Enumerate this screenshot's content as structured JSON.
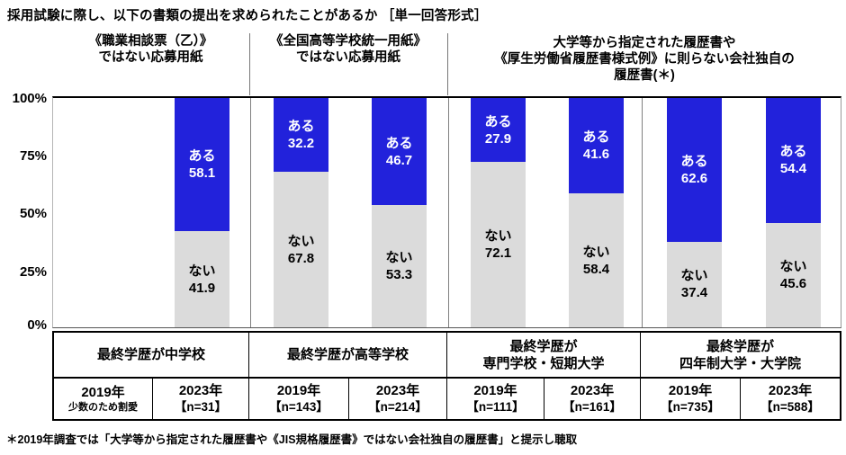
{
  "title": "採用試験に際し、以下の書類の提出を求められたことがあるか ［単一回答形式］",
  "footnote": "＊2019年調査では「大学等から指定された履歴書や《JIS規格履歴書》ではない会社独自の履歴書」と提示し聴取",
  "columns": [
    {
      "lines": [
        "《職業相談票（乙）》",
        "ではない応募用紙"
      ]
    },
    {
      "lines": [
        "《全国高等学校統一用紙》",
        "ではない応募用紙"
      ]
    },
    {
      "lines": [
        "大学等から指定された履歴書や",
        "《厚生労働省履歴書様式例》に則らない会社独自の",
        "履歴書(＊)"
      ]
    }
  ],
  "chart_data": {
    "type": "bar",
    "stacked": true,
    "unit": "%",
    "ylim": [
      0,
      100
    ],
    "y_ticks": [
      "100%",
      "75%",
      "50%",
      "25%",
      "0%"
    ],
    "grid": false,
    "legend": "labels inside segments",
    "series": [
      {
        "key": "aru",
        "name": "ある",
        "color": "#2222DB"
      },
      {
        "key": "nai",
        "name": "ない",
        "color": "#DBDBDB"
      }
    ],
    "groups": [
      {
        "category": "最終学歴が中学校",
        "bars": [
          {
            "year": "2019年",
            "note": "少数のため割愛",
            "omitted": true
          },
          {
            "year": "2023年",
            "n": 31,
            "n_label": "【n=31】",
            "aru": 58.1,
            "nai": 41.9
          }
        ]
      },
      {
        "category": "最終学歴が高等学校",
        "bars": [
          {
            "year": "2019年",
            "n": 143,
            "n_label": "【n=143】",
            "aru": 32.2,
            "nai": 67.8
          },
          {
            "year": "2023年",
            "n": 214,
            "n_label": "【n=214】",
            "aru": 46.7,
            "nai": 53.3
          }
        ]
      },
      {
        "category": "最終学歴が専門学校・短期大学",
        "category_lines": [
          "最終学歴が",
          "専門学校・短期大学"
        ],
        "bars": [
          {
            "year": "2019年",
            "n": 111,
            "n_label": "【n=111】",
            "aru": 27.9,
            "nai": 72.1
          },
          {
            "year": "2023年",
            "n": 161,
            "n_label": "【n=161】",
            "aru": 41.6,
            "nai": 58.4
          }
        ]
      },
      {
        "category": "最終学歴が四年制大学・大学院",
        "category_lines": [
          "最終学歴が",
          "四年制大学・大学院"
        ],
        "bars": [
          {
            "year": "2019年",
            "n": 735,
            "n_label": "【n=735】",
            "aru": 62.6,
            "nai": 37.4
          },
          {
            "year": "2023年",
            "n": 588,
            "n_label": "【n=588】",
            "aru": 54.4,
            "nai": 45.6
          }
        ]
      }
    ]
  }
}
